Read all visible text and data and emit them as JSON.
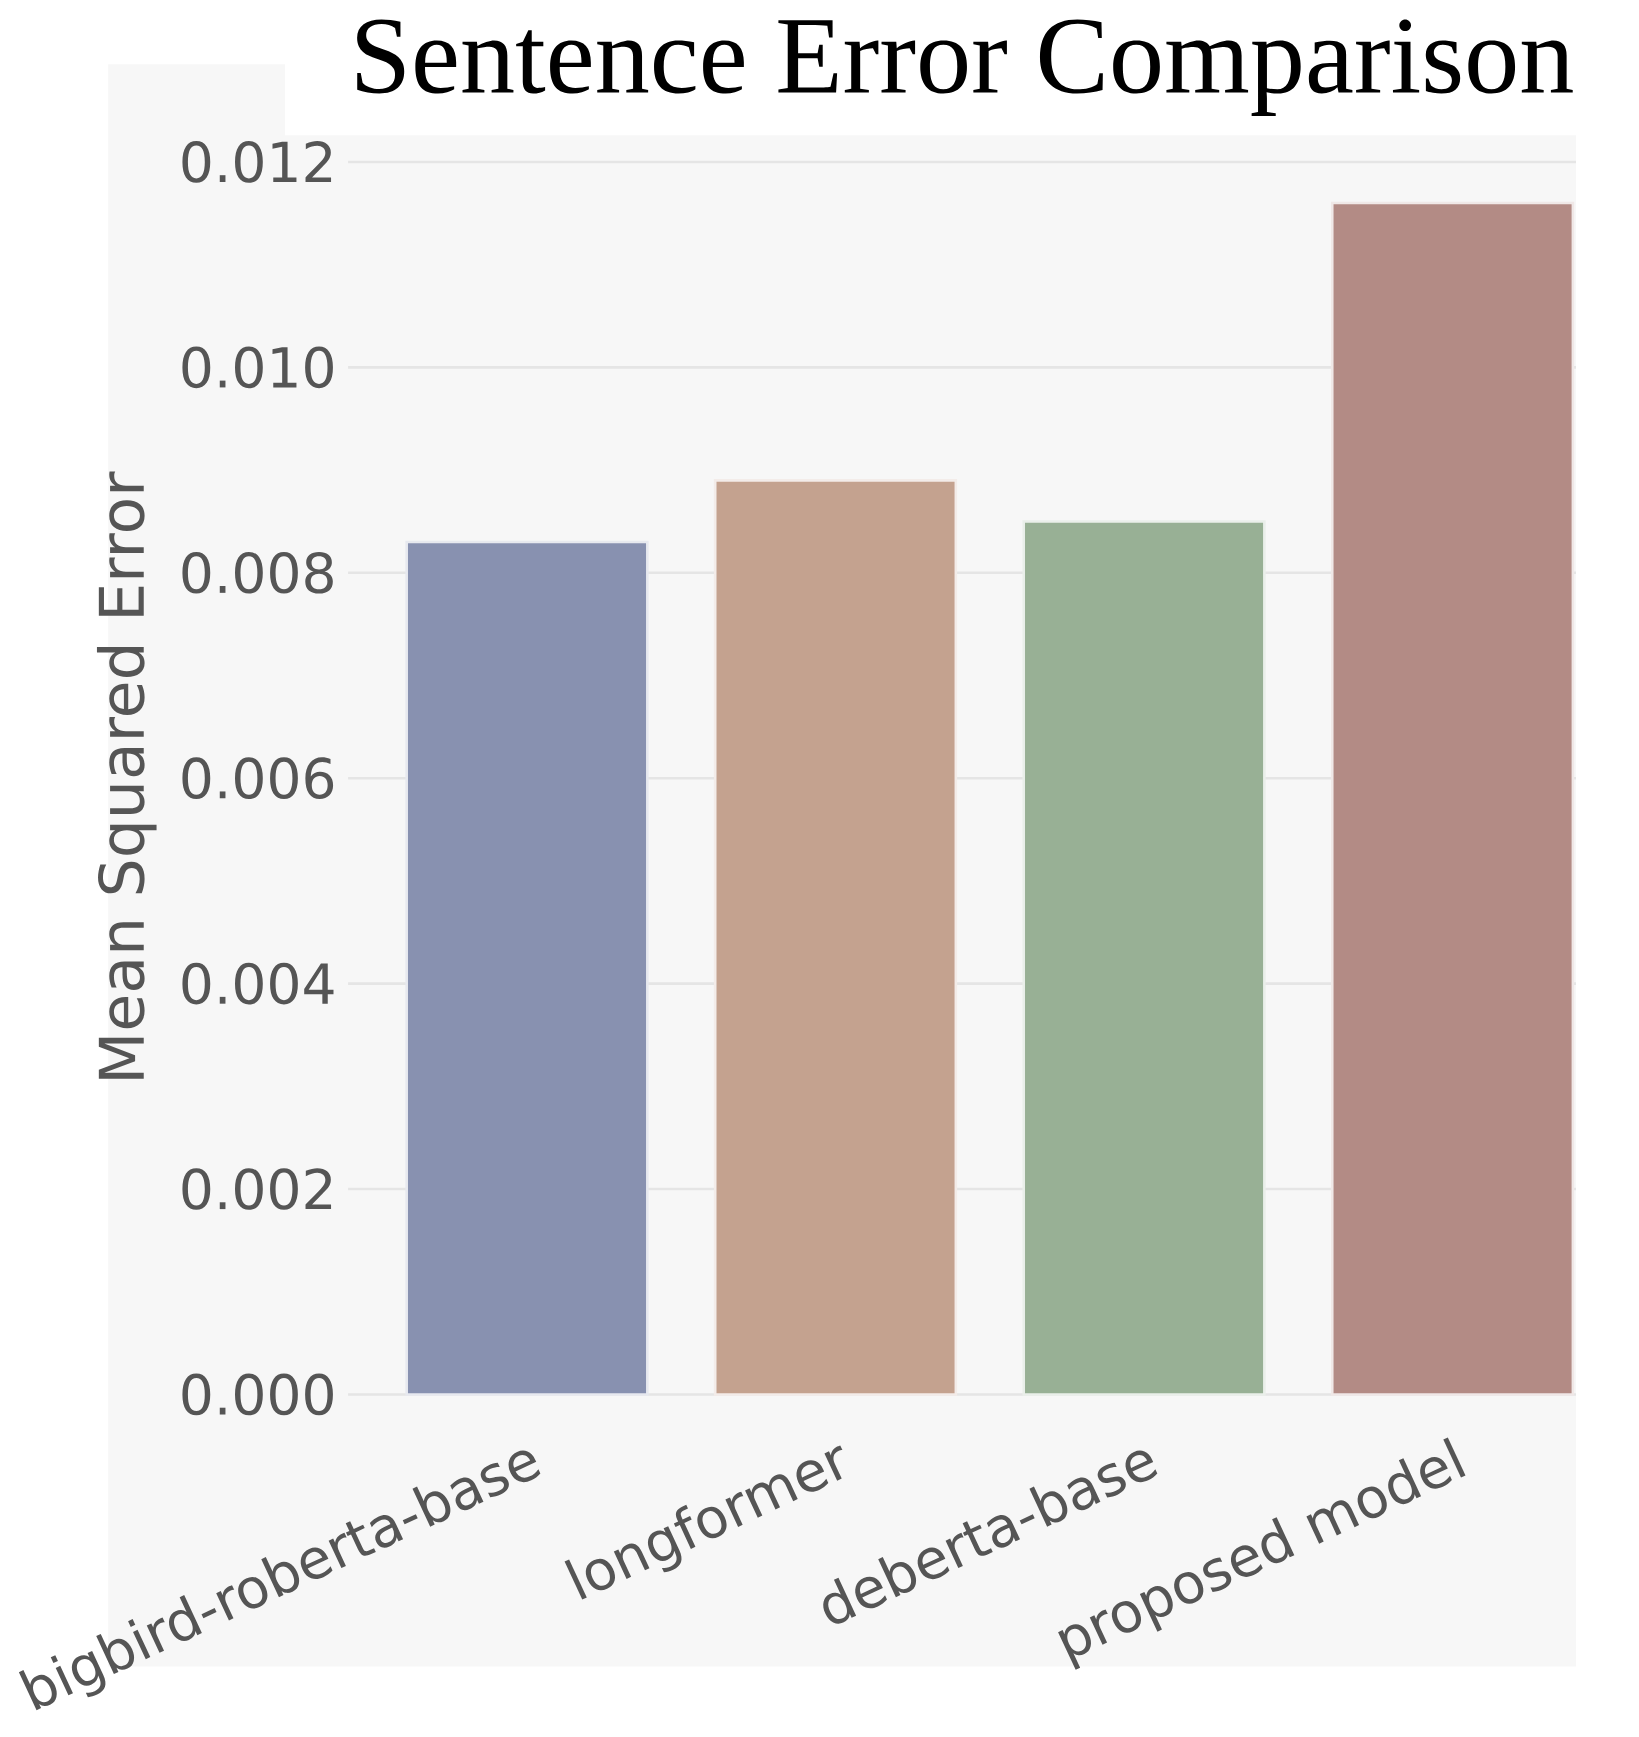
{
  "chart_data": {
    "type": "bar",
    "title": "Sentence Error Comparison",
    "ylabel": "Mean Squared Error",
    "categories": [
      "bigbird-roberta-base",
      "longformer",
      "deberta-base",
      "proposed model"
    ],
    "values": [
      0.0083,
      0.0089,
      0.0085,
      0.0116
    ],
    "colors": [
      "#8891b0",
      "#c4a28f",
      "#98b095",
      "#b38b85"
    ],
    "ylim": [
      0,
      0.012
    ],
    "yticks": [
      {
        "value": 0,
        "label": "0.000"
      },
      {
        "value": 0.002,
        "label": "0.002"
      },
      {
        "value": 0.004,
        "label": "0.004"
      },
      {
        "value": 0.006,
        "label": "0.006"
      },
      {
        "value": 0.008,
        "label": "0.008"
      },
      {
        "value": 0.01,
        "label": "0.010"
      },
      {
        "value": 0.012,
        "label": "0.012"
      }
    ],
    "grid": "y"
  }
}
